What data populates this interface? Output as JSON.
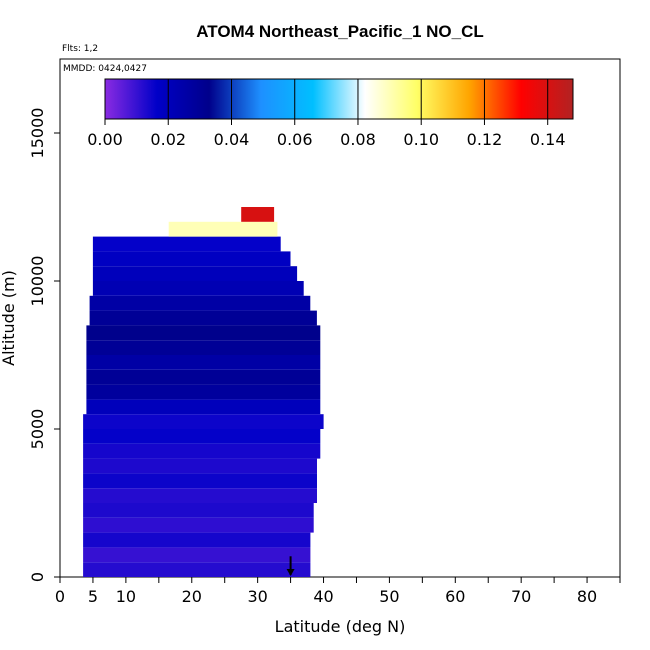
{
  "chart_data": {
    "type": "heatmap",
    "title": "ATOM4 Northeast_Pacific_1 NO_CL",
    "flights_label": "Flts: 1,2",
    "dates_label": "MMDD: 0424,0427",
    "xlabel": "Latitude (deg N)",
    "ylabel": "Altitude (m)",
    "xlim": [
      0,
      85
    ],
    "ylim": [
      0,
      17500
    ],
    "x_ticks": [
      0,
      5,
      10,
      20,
      30,
      40,
      50,
      60,
      70,
      80
    ],
    "y_ticks": [
      0,
      5000,
      10000,
      15000
    ],
    "colorbar": {
      "min": 0.0,
      "max": 0.148,
      "tick_values": [
        0.0,
        0.02,
        0.04,
        0.06,
        0.08,
        0.1,
        0.12,
        0.14
      ],
      "tick_labels": [
        "0.00",
        "0.02",
        "0.04",
        "0.06",
        "0.08",
        "0.10",
        "0.12",
        "0.14"
      ],
      "color_stops": [
        "#8a2be2",
        "#0000c8",
        "#00008b",
        "#1e90ff",
        "#00bfff",
        "#ffffff",
        "#ffff66",
        "#ffa500",
        "#ff0000",
        "#b22222"
      ]
    },
    "profile": [
      {
        "alt_min": 0,
        "alt_max": 500,
        "lat_min": 3.5,
        "lat_max": 38,
        "value": 0.012
      },
      {
        "alt_min": 500,
        "alt_max": 1000,
        "lat_min": 3.5,
        "lat_max": 38,
        "value": 0.01
      },
      {
        "alt_min": 1000,
        "alt_max": 1500,
        "lat_min": 3.5,
        "lat_max": 38,
        "value": 0.014
      },
      {
        "alt_min": 1500,
        "alt_max": 2000,
        "lat_min": 3.5,
        "lat_max": 38.5,
        "value": 0.011
      },
      {
        "alt_min": 2000,
        "alt_max": 2500,
        "lat_min": 3.5,
        "lat_max": 38.5,
        "value": 0.013
      },
      {
        "alt_min": 2500,
        "alt_max": 3000,
        "lat_min": 3.5,
        "lat_max": 39,
        "value": 0.012
      },
      {
        "alt_min": 3000,
        "alt_max": 3500,
        "lat_min": 3.5,
        "lat_max": 39,
        "value": 0.015
      },
      {
        "alt_min": 3500,
        "alt_max": 4000,
        "lat_min": 3.5,
        "lat_max": 39,
        "value": 0.013
      },
      {
        "alt_min": 4000,
        "alt_max": 4500,
        "lat_min": 3.5,
        "lat_max": 39.5,
        "value": 0.014
      },
      {
        "alt_min": 4500,
        "alt_max": 5000,
        "lat_min": 3.5,
        "lat_max": 39.5,
        "value": 0.016
      },
      {
        "alt_min": 5000,
        "alt_max": 5500,
        "lat_min": 3.5,
        "lat_max": 40,
        "value": 0.015
      },
      {
        "alt_min": 5500,
        "alt_max": 6000,
        "lat_min": 4,
        "lat_max": 39.5,
        "value": 0.02
      },
      {
        "alt_min": 6000,
        "alt_max": 6500,
        "lat_min": 4,
        "lat_max": 39.5,
        "value": 0.028
      },
      {
        "alt_min": 6500,
        "alt_max": 7000,
        "lat_min": 4,
        "lat_max": 39.5,
        "value": 0.03
      },
      {
        "alt_min": 7000,
        "alt_max": 7500,
        "lat_min": 4,
        "lat_max": 39.5,
        "value": 0.026
      },
      {
        "alt_min": 7500,
        "alt_max": 8000,
        "lat_min": 4,
        "lat_max": 39.5,
        "value": 0.03
      },
      {
        "alt_min": 8000,
        "alt_max": 8500,
        "lat_min": 4,
        "lat_max": 39.5,
        "value": 0.033
      },
      {
        "alt_min": 8500,
        "alt_max": 9000,
        "lat_min": 4.5,
        "lat_max": 39,
        "value": 0.03
      },
      {
        "alt_min": 9000,
        "alt_max": 9500,
        "lat_min": 4.5,
        "lat_max": 38,
        "value": 0.026
      },
      {
        "alt_min": 9500,
        "alt_max": 10000,
        "lat_min": 5,
        "lat_max": 37,
        "value": 0.022
      },
      {
        "alt_min": 10000,
        "alt_max": 10500,
        "lat_min": 5,
        "lat_max": 36,
        "value": 0.02
      },
      {
        "alt_min": 10500,
        "alt_max": 11000,
        "lat_min": 5,
        "lat_max": 35,
        "value": 0.018
      },
      {
        "alt_min": 11000,
        "alt_max": 11500,
        "lat_min": 5,
        "lat_max": 33.5,
        "value": 0.016
      },
      {
        "alt_min": 11500,
        "alt_max": 12000,
        "lat_min": 16.5,
        "lat_max": 33,
        "value": 0.09
      },
      {
        "alt_min": 12000,
        "alt_max": 12500,
        "lat_min": 27.5,
        "lat_max": 32.5,
        "value": 0.14
      }
    ],
    "annotations": [
      {
        "type": "arrow",
        "x": 35,
        "y_from": 700,
        "y_to": 0,
        "direction": "down"
      }
    ]
  }
}
